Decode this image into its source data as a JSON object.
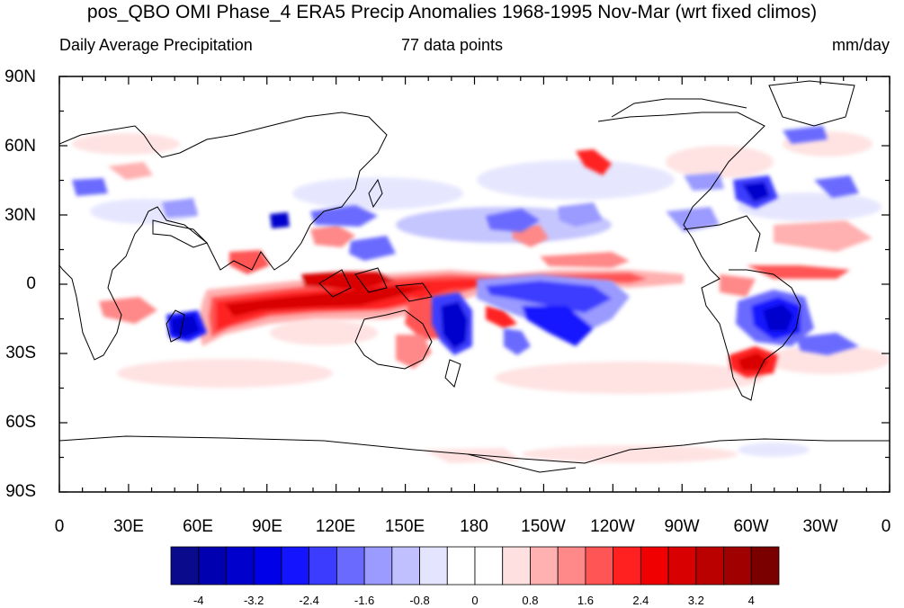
{
  "title": "pos_QBO OMI Phase_4 ERA5 Precip Anomalies 1968-1995 Nov-Mar (wrt fixed climos)",
  "subtitle_left": "Daily Average Precipitation",
  "subtitle_center": "77 data points",
  "subtitle_right": "mm/day",
  "lat_labels": [
    "90N",
    "60N",
    "30N",
    "0",
    "30S",
    "60S",
    "90S"
  ],
  "lon_labels": [
    "0",
    "30E",
    "60E",
    "90E",
    "120E",
    "150E",
    "180",
    "150W",
    "120W",
    "90W",
    "60W",
    "30W",
    "0"
  ],
  "colorbar": {
    "labels": [
      "-4",
      "-3.2",
      "-2.4",
      "-1.6",
      "-0.8",
      "0",
      "0.8",
      "1.6",
      "2.4",
      "3.2",
      "4"
    ],
    "colors": [
      "#0a0a8c",
      "#0000b0",
      "#0000cd",
      "#0000e8",
      "#1414ff",
      "#3c3cff",
      "#6a6aff",
      "#9a9aff",
      "#c0c0ff",
      "#e4e4ff",
      "#ffffff",
      "#ffffff",
      "#ffe0e0",
      "#ffb0b0",
      "#ff8888",
      "#ff5555",
      "#ff2020",
      "#f00000",
      "#d80000",
      "#bb0000",
      "#a00000",
      "#7a0000"
    ]
  },
  "map_data": {
    "type": "filled contour map",
    "variable": "precipitation anomaly",
    "units": "mm/day",
    "lat_range": [
      -90,
      90
    ],
    "lon_range": [
      0,
      360
    ],
    "features": [
      {
        "lon": 80,
        "lat": -8,
        "value": 3.6
      },
      {
        "lon": 115,
        "lat": 2,
        "value": 4.0
      },
      {
        "lon": 150,
        "lat": 6,
        "value": 2.8
      },
      {
        "lon": 165,
        "lat": -15,
        "value": 3.0
      },
      {
        "lon": 60,
        "lat": -18,
        "value": -3.2
      },
      {
        "lon": 172,
        "lat": -18,
        "value": -4.0
      },
      {
        "lon": 205,
        "lat": -12,
        "value": -2.8
      },
      {
        "lon": 307,
        "lat": -12,
        "value": -4.0
      },
      {
        "lon": 300,
        "lat": -32,
        "value": 3.2
      },
      {
        "lon": 220,
        "lat": 8,
        "value": 2.0
      },
      {
        "lon": 227,
        "lat": 52,
        "value": 2.6
      },
      {
        "lon": 282,
        "lat": 33,
        "value": -2.2
      },
      {
        "lon": 95,
        "lat": 30,
        "value": -2.0
      }
    ]
  }
}
